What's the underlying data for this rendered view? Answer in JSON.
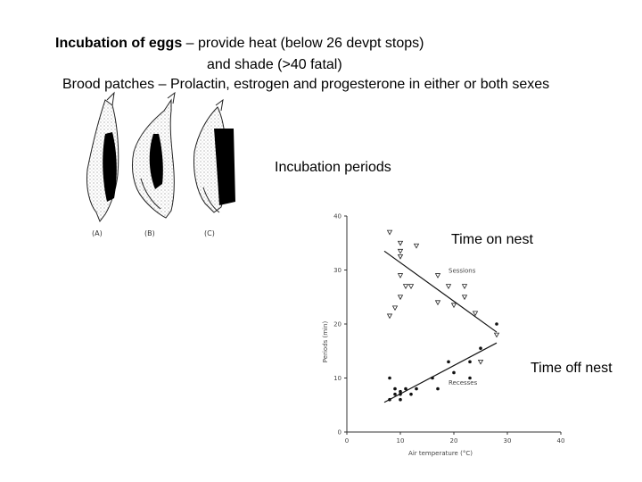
{
  "header": {
    "line1_bold": "Incubation of eggs",
    "line1_rest": " – provide heat (below 26 devpt stops)",
    "line2": "and shade (>40 fatal)",
    "line3": "Brood patches – Prolactin, estrogen and progesterone  in either or both sexes"
  },
  "labels": {
    "incubation_periods": "Incubation periods",
    "time_on_nest": "Time on nest",
    "time_off_nest": "Time off nest"
  },
  "bird_figures": {
    "captions": [
      "(A)",
      "(B)",
      "(C)"
    ]
  },
  "chart_data": {
    "type": "scatter",
    "xlabel": "Air temperature (°C)",
    "ylabel": "Periods (min)",
    "xlim": [
      0,
      40
    ],
    "ylim": [
      0,
      40
    ],
    "x_ticks": [
      0,
      10,
      20,
      30,
      40
    ],
    "y_ticks": [
      0,
      10,
      20,
      30,
      40
    ],
    "series": [
      {
        "name": "Sessions",
        "marker": "triangle",
        "points": [
          [
            8,
            37
          ],
          [
            10,
            35
          ],
          [
            13,
            34.5
          ],
          [
            10,
            33.5
          ],
          [
            10,
            32.5
          ],
          [
            10,
            29
          ],
          [
            11,
            27
          ],
          [
            12,
            27
          ],
          [
            10,
            25
          ],
          [
            9,
            23
          ],
          [
            8,
            21.5
          ],
          [
            17,
            29
          ],
          [
            19,
            27
          ],
          [
            17,
            24
          ],
          [
            20,
            23.5
          ],
          [
            22,
            27
          ],
          [
            22,
            25
          ],
          [
            24,
            22
          ],
          [
            25,
            13
          ],
          [
            28,
            18
          ]
        ],
        "trend": [
          [
            7,
            33.5
          ],
          [
            28,
            18.5
          ]
        ]
      },
      {
        "name": "Recesses",
        "marker": "dot",
        "points": [
          [
            8,
            10
          ],
          [
            9,
            8
          ],
          [
            9,
            7
          ],
          [
            10,
            7
          ],
          [
            10,
            6
          ],
          [
            11,
            8
          ],
          [
            12,
            7
          ],
          [
            13,
            8
          ],
          [
            16,
            10
          ],
          [
            17,
            8
          ],
          [
            19,
            13
          ],
          [
            20,
            11
          ],
          [
            23,
            13
          ],
          [
            23,
            10
          ],
          [
            28,
            20
          ],
          [
            25,
            15.5
          ],
          [
            8,
            6
          ],
          [
            10,
            7.5
          ]
        ],
        "trend": [
          [
            7,
            5.5
          ],
          [
            28,
            16.5
          ]
        ]
      }
    ],
    "annotations": [
      {
        "text": "Sessions",
        "x": 19,
        "y": 29.5
      },
      {
        "text": "Recesses",
        "x": 19,
        "y": 8.8
      }
    ]
  }
}
